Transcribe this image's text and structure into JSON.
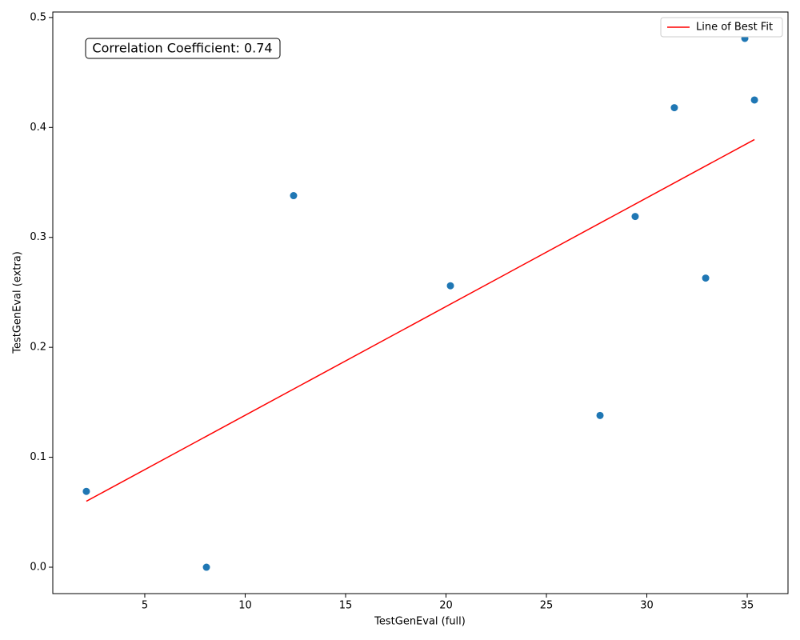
{
  "chart_data": {
    "type": "scatter",
    "xlabel": "TestGenEval (full)",
    "ylabel": "TestGenEval (extra)",
    "annotation": "Correlation Coefficient: 0.74",
    "xlim": [
      0.42,
      37.03
    ],
    "ylim": [
      -0.024,
      0.505
    ],
    "xticks": [
      5,
      10,
      15,
      20,
      25,
      30,
      35
    ],
    "yticks": [
      {
        "value": 0,
        "label": "0.0"
      },
      0.1,
      0.2,
      0.3,
      0.4,
      0.5
    ],
    "legend": "upper right",
    "series": [
      {
        "type": "scatter",
        "color": "#1f77b4",
        "x": [
          2.09,
          8.07,
          12.41,
          20.22,
          27.67,
          29.42,
          31.37,
          32.93,
          34.88,
          35.36
        ],
        "values": [
          0.069,
          0,
          0.338,
          0.256,
          0.138,
          0.319,
          0.418,
          0.263,
          0.481,
          0.425
        ]
      },
      {
        "type": "line",
        "name": "Line of Best Fit",
        "color": "red",
        "x": [
          2.09,
          35.36
        ],
        "values": [
          0.06,
          0.389
        ]
      }
    ]
  }
}
